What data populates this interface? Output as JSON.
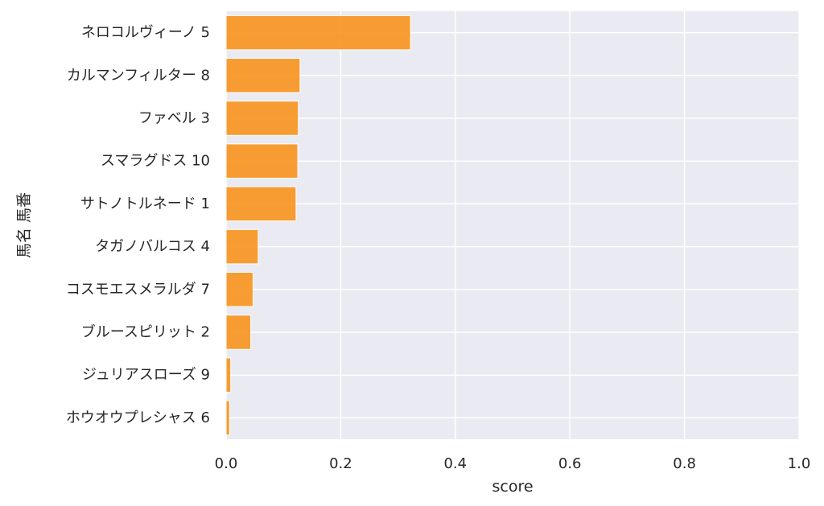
{
  "chart_data": {
    "type": "bar",
    "orientation": "horizontal",
    "xlabel": "score",
    "ylabel": "馬名 馬番",
    "xlim": [
      0,
      1.0
    ],
    "xticks": [
      "0.0",
      "0.2",
      "0.4",
      "0.6",
      "0.8",
      "1.0"
    ],
    "grid": true,
    "categories": [
      "ネロコルヴィーノ 5",
      "カルマンフィルター 8",
      "ファベル 3",
      "スマラグドス 10",
      "サトノトルネード 1",
      "タガノバルコス 4",
      "コスモエスメラルダ 7",
      "ブルースピリット 2",
      "ジュリアスローズ 9",
      "ホウオウプレシャス 6"
    ],
    "values": [
      0.322,
      0.129,
      0.126,
      0.125,
      0.122,
      0.056,
      0.047,
      0.043,
      0.008,
      0.006
    ],
    "colors": {
      "bar": "#f7931e",
      "plot_bg": "#eaeaf2",
      "grid": "#ffffff",
      "text": "#262626"
    }
  }
}
